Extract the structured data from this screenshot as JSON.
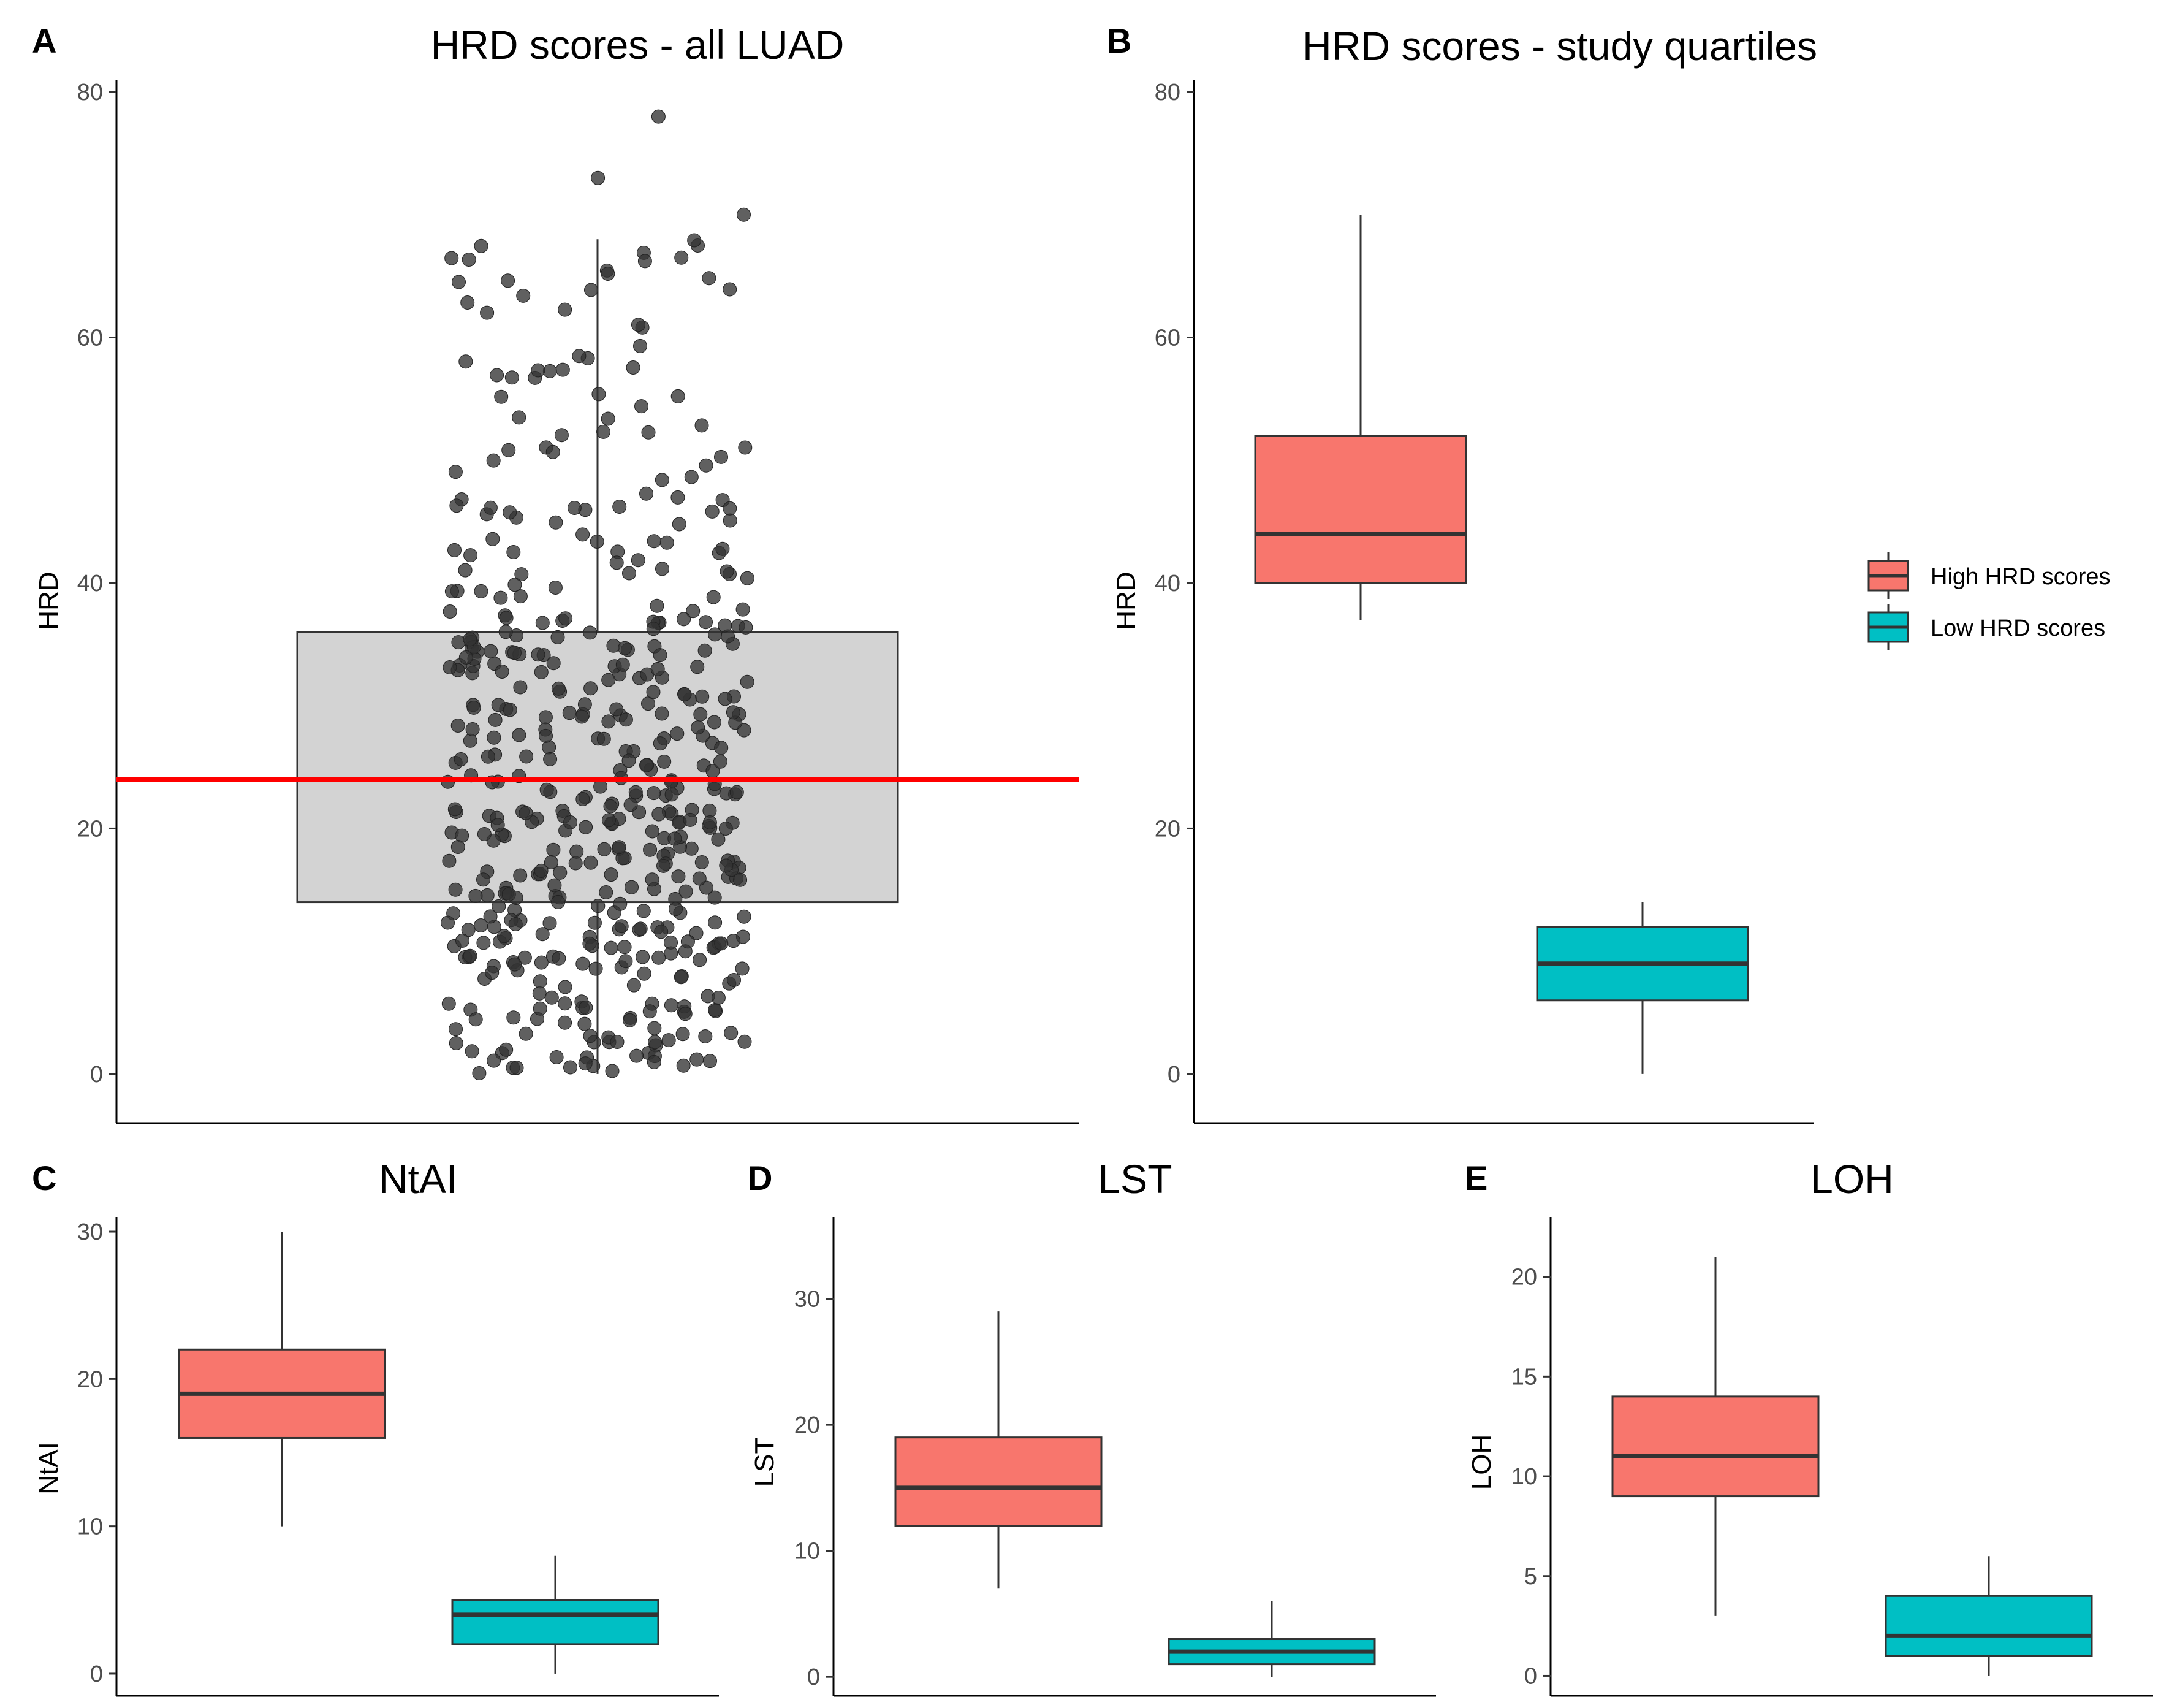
{
  "colors": {
    "high": "#F8766D",
    "low": "#00BFC4",
    "median_line": "#FF0000",
    "main_box_fill": "#D3D3D3",
    "points": "#333333"
  },
  "legend": {
    "items": [
      {
        "key": "high",
        "label": "High HRD scores"
      },
      {
        "key": "low",
        "label": "Low HRD scores"
      }
    ]
  },
  "chart_data": [
    {
      "id": "A",
      "letter": "A",
      "type": "box+jitter",
      "title": "HRD scores - all LUAD",
      "ylabel": "HRD",
      "ylim": [
        -4,
        81
      ],
      "yticks": [
        0,
        20,
        40,
        60,
        80
      ],
      "box": {
        "lower_whisker": 0,
        "q1": 14,
        "median": 24,
        "q3": 36,
        "upper_whisker": 68
      },
      "reference_line": 24,
      "outliers": [
        73,
        78,
        70
      ],
      "points_count": 500,
      "grid": false
    },
    {
      "id": "B",
      "letter": "B",
      "type": "box",
      "title": "HRD scores - study quartiles",
      "ylabel": "HRD",
      "ylim": [
        -4,
        81
      ],
      "yticks": [
        0,
        20,
        40,
        60,
        80
      ],
      "categories": [
        "High HRD scores",
        "Low HRD scores"
      ],
      "series": [
        {
          "key": "high",
          "lower_whisker": 37,
          "q1": 40,
          "median": 44,
          "q3": 52,
          "upper_whisker": 70
        },
        {
          "key": "low",
          "lower_whisker": 0,
          "q1": 6,
          "median": 9,
          "q3": 12,
          "upper_whisker": 14
        }
      ],
      "legend_position": "right",
      "grid": false
    },
    {
      "id": "C",
      "letter": "C",
      "type": "box",
      "title": "NtAI",
      "ylabel": "NtAI",
      "ylim": [
        -1.5,
        31
      ],
      "yticks": [
        0,
        10,
        20,
        30
      ],
      "categories": [
        "High HRD scores",
        "Low HRD scores"
      ],
      "series": [
        {
          "key": "high",
          "lower_whisker": 10,
          "q1": 16,
          "median": 19,
          "q3": 22,
          "upper_whisker": 30
        },
        {
          "key": "low",
          "lower_whisker": 0,
          "q1": 2,
          "median": 4,
          "q3": 5,
          "upper_whisker": 8
        }
      ],
      "grid": false
    },
    {
      "id": "D",
      "letter": "D",
      "type": "box",
      "title": "LST",
      "ylabel": "LST",
      "ylim": [
        -1.5,
        36.5
      ],
      "yticks": [
        0,
        10,
        20,
        30
      ],
      "categories": [
        "High HRD scores",
        "Low HRD scores"
      ],
      "series": [
        {
          "key": "high",
          "lower_whisker": 7,
          "q1": 12,
          "median": 15,
          "q3": 19,
          "upper_whisker": 29
        },
        {
          "key": "low",
          "lower_whisker": 0,
          "q1": 1,
          "median": 2,
          "q3": 3,
          "upper_whisker": 6
        }
      ],
      "grid": false
    },
    {
      "id": "E",
      "letter": "E",
      "type": "box",
      "title": "LOH",
      "ylabel": "LOH",
      "ylim": [
        -1,
        23
      ],
      "yticks": [
        0,
        5,
        10,
        15,
        20
      ],
      "categories": [
        "High HRD scores",
        "Low HRD scores"
      ],
      "series": [
        {
          "key": "high",
          "lower_whisker": 3,
          "q1": 9,
          "median": 11,
          "q3": 14,
          "upper_whisker": 21
        },
        {
          "key": "low",
          "lower_whisker": 0,
          "q1": 1,
          "median": 2,
          "q3": 4,
          "upper_whisker": 6
        }
      ],
      "grid": false
    }
  ]
}
